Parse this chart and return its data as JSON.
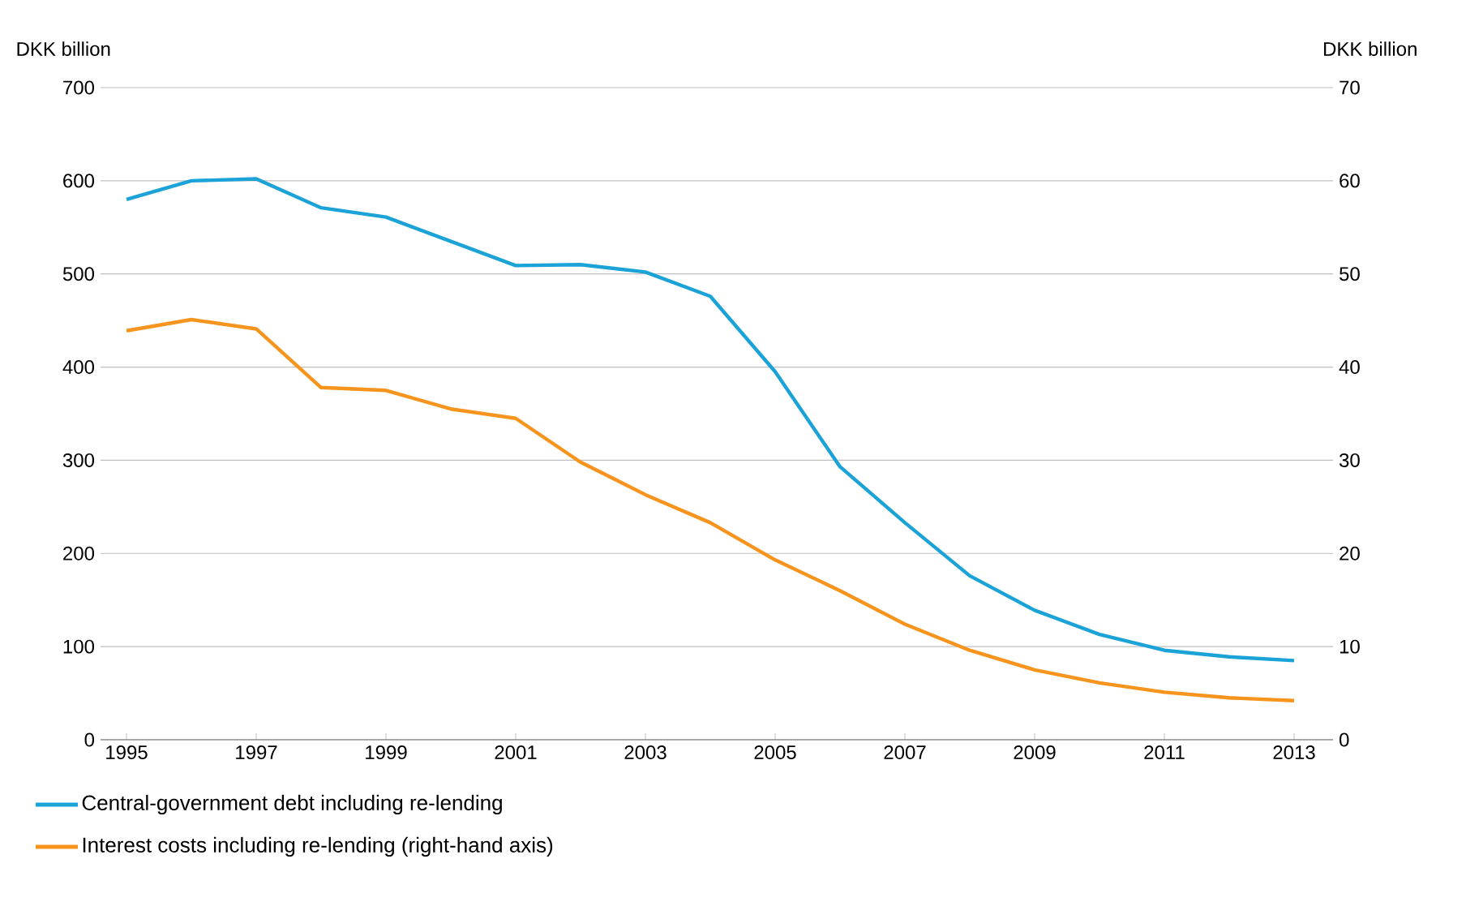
{
  "chart_data": {
    "type": "line",
    "ylabel": "DKK billion",
    "y2label": "DKK billion",
    "x": [
      1995,
      1996,
      1997,
      1998,
      1999,
      2000,
      2001,
      2002,
      2003,
      2004,
      2005,
      2006,
      2007,
      2008,
      2009,
      2010,
      2011,
      2012,
      2013
    ],
    "series": [
      {
        "name": "Central-government debt including re-lending",
        "color": "#1ba3d8",
        "values": [
          580,
          600,
          602,
          571,
          561,
          535,
          509,
          510,
          502,
          476,
          395,
          293,
          233,
          176,
          139,
          113,
          96,
          89,
          85
        ]
      },
      {
        "name": "Interest costs including re-lending (right-hand axis)",
        "color": "#f7941d",
        "axis": "y2",
        "values": [
          43.9,
          45.1,
          44.1,
          37.8,
          37.5,
          35.5,
          34.5,
          29.8,
          26.3,
          23.3,
          19.3,
          16.0,
          12.4,
          9.6,
          7.5,
          6.1,
          5.1,
          4.5,
          4.2
        ]
      }
    ],
    "xlim": [
      1994.6,
      2013.6
    ],
    "xticks": [
      1995,
      1997,
      1999,
      2001,
      2003,
      2005,
      2007,
      2009,
      2011,
      2013
    ],
    "ylim": [
      0,
      700
    ],
    "yticks": [
      0,
      100,
      200,
      300,
      400,
      500,
      600,
      700
    ],
    "y2lim": [
      0,
      70
    ],
    "y2ticks": [
      0,
      10,
      20,
      30,
      40,
      50,
      60,
      70
    ],
    "grid": "y",
    "legend": "bottom left",
    "marker": "none",
    "line_style": "solid"
  }
}
